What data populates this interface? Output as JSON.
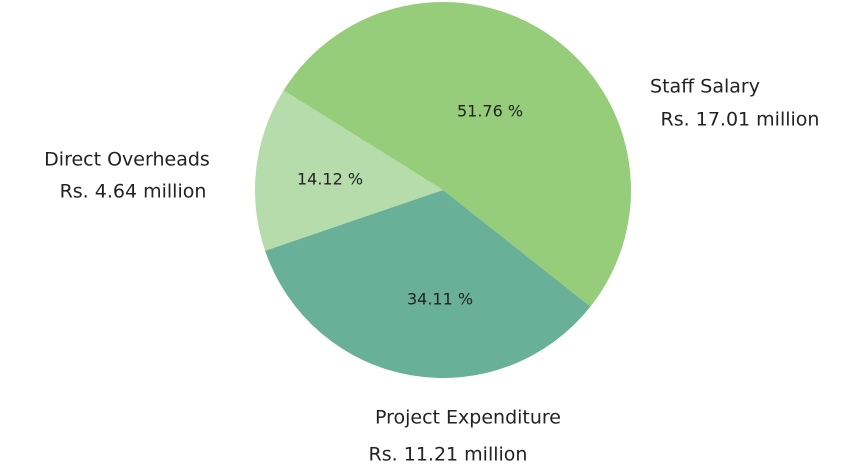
{
  "chart_data": {
    "type": "pie",
    "categories": [
      "Staff Salary",
      "Project Expenditure",
      "Direct Overheads"
    ],
    "sublabels": [
      "Rs. 17.01 million",
      "Rs. 11.21 million",
      "Rs. 4.64 million"
    ],
    "values": [
      51.76,
      34.11,
      14.12
    ],
    "value_labels": [
      "51.76 %",
      "34.11 %",
      "14.12 %"
    ],
    "colors": [
      "#96cd7a",
      "#68b097",
      "#b5dcaa"
    ]
  }
}
